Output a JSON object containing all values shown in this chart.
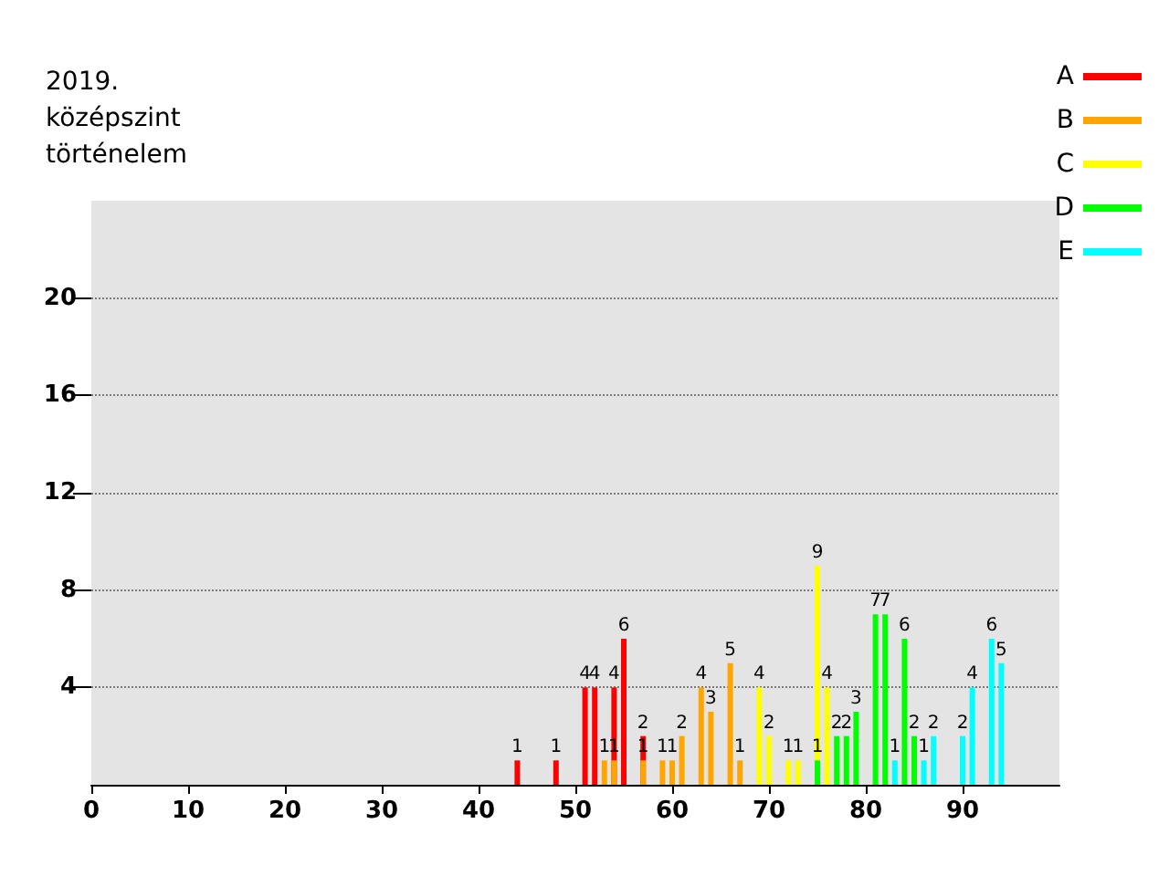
{
  "chart_data": {
    "type": "bar",
    "title": "2019. középszint történelem",
    "xlim": [
      0,
      100
    ],
    "xticks": [
      0,
      10,
      20,
      30,
      40,
      50,
      60,
      70,
      80,
      90
    ],
    "ylim": [
      0,
      24
    ],
    "yticks": [
      4,
      8,
      12,
      16,
      20
    ],
    "grid": "y",
    "legend": "top right",
    "data_labels": true,
    "series": [
      {
        "name": "A",
        "color": "#ff0000",
        "x": [
          44,
          48,
          51,
          52,
          54,
          55,
          57
        ],
        "values": [
          1,
          1,
          4,
          4,
          4,
          6,
          2
        ]
      },
      {
        "name": "B",
        "color": "#ffa500",
        "x": [
          53,
          54,
          57,
          59,
          60,
          61,
          63,
          64,
          66,
          67
        ],
        "values": [
          1,
          1,
          1,
          1,
          1,
          2,
          4,
          3,
          5,
          1
        ]
      },
      {
        "name": "C",
        "color": "#ffff00",
        "x": [
          69,
          70,
          72,
          73,
          75,
          76
        ],
        "values": [
          4,
          2,
          1,
          1,
          9,
          4
        ]
      },
      {
        "name": "D",
        "color": "#00ff00",
        "x": [
          75,
          77,
          78,
          79,
          81,
          82,
          84,
          85
        ],
        "values": [
          1,
          2,
          2,
          3,
          7,
          7,
          6,
          2
        ]
      },
      {
        "name": "E",
        "color": "#00ffff",
        "x": [
          83,
          86,
          87,
          90,
          91,
          93,
          94
        ],
        "values": [
          1,
          1,
          2,
          2,
          4,
          6,
          5
        ]
      }
    ]
  }
}
